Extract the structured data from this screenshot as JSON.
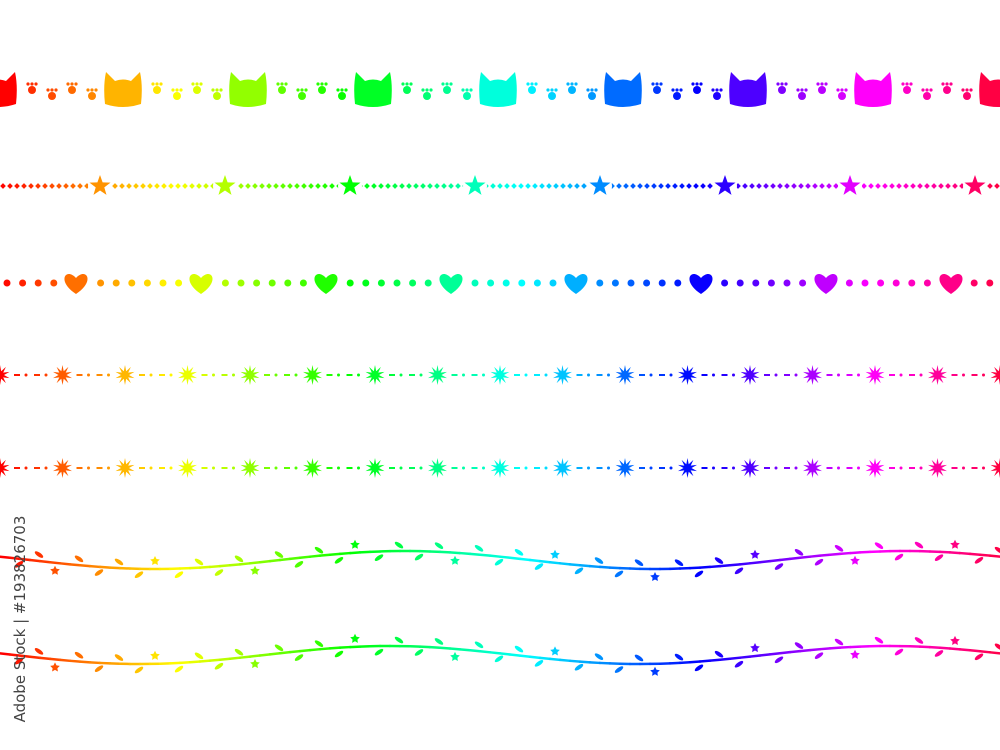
{
  "watermark": {
    "text": "Adobe Stock | #193826703"
  },
  "gradient": {
    "hue_start": 0,
    "hue_end": 345,
    "saturation": 100,
    "lightness": 50
  },
  "rows": [
    {
      "type": "cats-and-paws"
    },
    {
      "type": "stars-and-diamonds"
    },
    {
      "type": "hearts-and-dots"
    },
    {
      "type": "flowers-dash-dot"
    },
    {
      "type": "flowers-dash-dot"
    },
    {
      "type": "vine"
    },
    {
      "type": "vine"
    }
  ]
}
